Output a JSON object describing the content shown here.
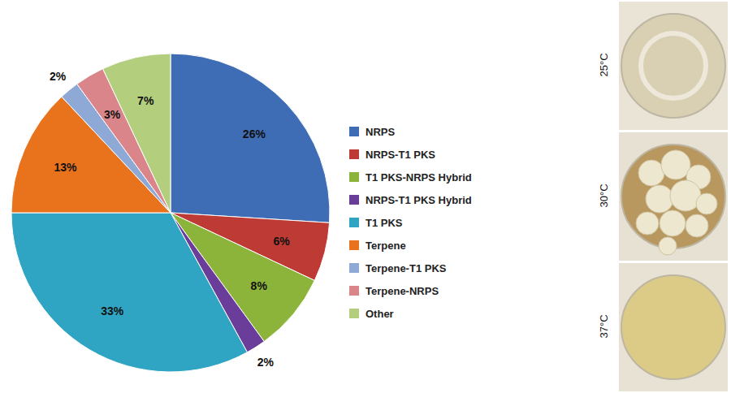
{
  "chart_data": {
    "type": "pie",
    "categories": [
      "NRPS",
      "NRPS-T1 PKS",
      "T1 PKS-NRPS Hybrid",
      "NRPS-T1 PKS Hybrid",
      "T1 PKS",
      "Terpene",
      "Terpene-T1 PKS",
      "Terpene-NRPS",
      "Other"
    ],
    "values": [
      26,
      6,
      8,
      2,
      33,
      13,
      2,
      3,
      7
    ],
    "value_labels": [
      "26%",
      "6%",
      "8%",
      "2%",
      "33%",
      "13%",
      "2%",
      "3%",
      "7%"
    ],
    "colors": [
      "#3E6DB5",
      "#BE3A34",
      "#8DB43A",
      "#6A3D9A",
      "#2FA5C3",
      "#E8731C",
      "#8FA9D6",
      "#D9858A",
      "#B3CF7E"
    ],
    "data_labels": true,
    "legend": "right"
  },
  "images": {
    "labels": [
      "25°C",
      "30°C",
      "37°C"
    ]
  }
}
